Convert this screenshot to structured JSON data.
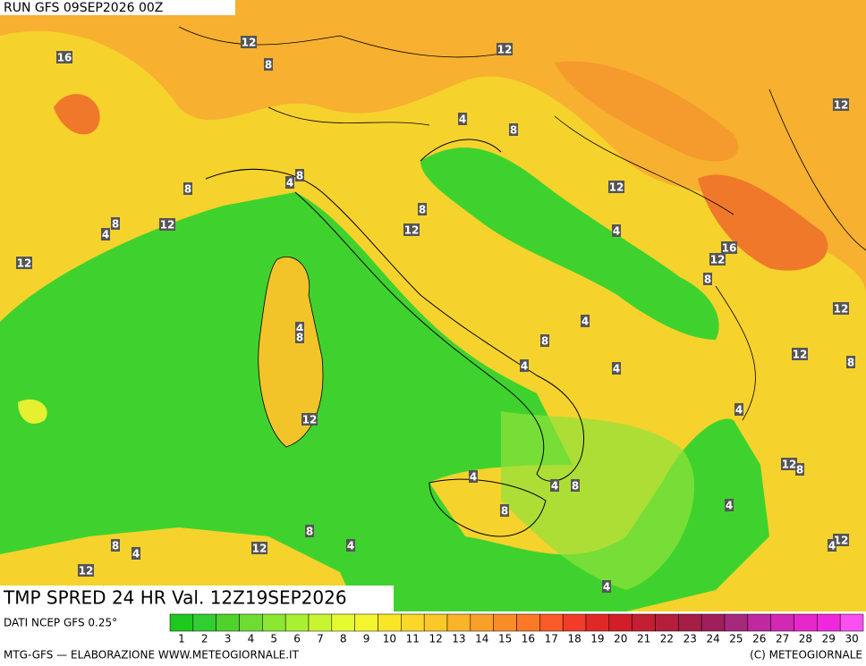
{
  "header": {
    "run": "RUN GFS 09SEP2026 00Z"
  },
  "title": "TMP SPRED 24 HR Val. 12Z19SEP2026",
  "source": "DATI NCEP GFS 0.25°",
  "credit_left": "MTG-GFS — ELABORAZIONE WWW.METEOGIORNALE.IT",
  "credit_right": "(C) METEOGIORNALE",
  "contour_labels": [
    12,
    16,
    8,
    12,
    12,
    4,
    8,
    8,
    4,
    8,
    12,
    8,
    12,
    4,
    8,
    12,
    4,
    16,
    12,
    12,
    8,
    12,
    4,
    8,
    4,
    8,
    4,
    4,
    12,
    8,
    4,
    12,
    4,
    12,
    8,
    4,
    8,
    8,
    4,
    8,
    4,
    12,
    8,
    4,
    12,
    4,
    12,
    4
  ],
  "legend": [
    {
      "label": 1,
      "color": "#1ec81e"
    },
    {
      "label": 2,
      "color": "#32cd32"
    },
    {
      "label": 3,
      "color": "#50d22d"
    },
    {
      "label": 4,
      "color": "#6edc32"
    },
    {
      "label": 5,
      "color": "#8ce632"
    },
    {
      "label": 6,
      "color": "#aaf032"
    },
    {
      "label": 7,
      "color": "#c8f532"
    },
    {
      "label": 8,
      "color": "#e6fa32"
    },
    {
      "label": 9,
      "color": "#f5f52d"
    },
    {
      "label": 10,
      "color": "#fae628"
    },
    {
      "label": 11,
      "color": "#fad728"
    },
    {
      "label": 12,
      "color": "#fac828"
    },
    {
      "label": 13,
      "color": "#fab428"
    },
    {
      "label": 14,
      "color": "#faa028"
    },
    {
      "label": 15,
      "color": "#fa8c28"
    },
    {
      "label": 16,
      "color": "#fa7828"
    },
    {
      "label": 17,
      "color": "#fa5a28"
    },
    {
      "label": 18,
      "color": "#f03c28"
    },
    {
      "label": 19,
      "color": "#e12828"
    },
    {
      "label": 20,
      "color": "#d21e28"
    },
    {
      "label": 21,
      "color": "#c31e32"
    },
    {
      "label": 22,
      "color": "#b41e3c"
    },
    {
      "label": 23,
      "color": "#a51e46"
    },
    {
      "label": 24,
      "color": "#a01e5a"
    },
    {
      "label": 25,
      "color": "#a5287d"
    },
    {
      "label": 26,
      "color": "#be28a0"
    },
    {
      "label": 27,
      "color": "#d228b4"
    },
    {
      "label": 28,
      "color": "#e628c8"
    },
    {
      "label": 29,
      "color": "#f028dc"
    },
    {
      "label": 30,
      "color": "#fa50f0"
    }
  ]
}
